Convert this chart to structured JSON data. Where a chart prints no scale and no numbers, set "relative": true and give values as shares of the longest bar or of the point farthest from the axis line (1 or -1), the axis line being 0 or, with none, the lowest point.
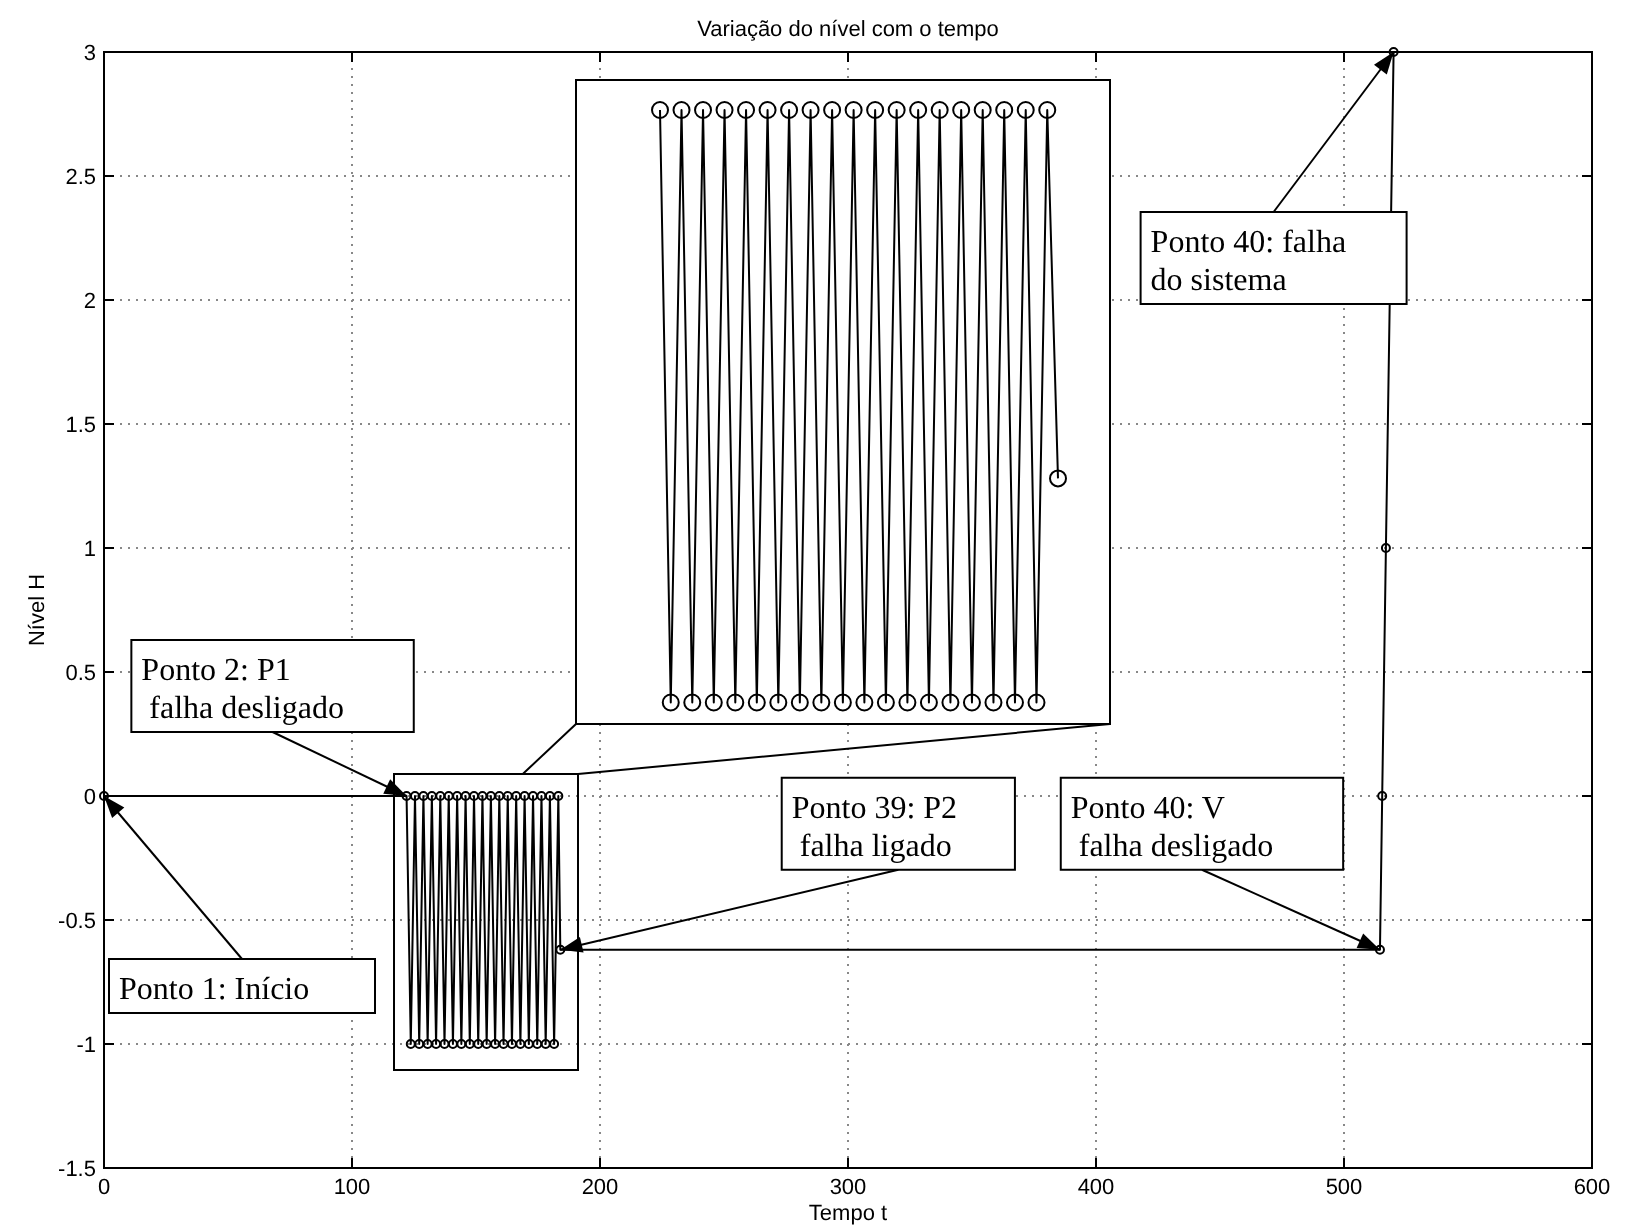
{
  "chart_data": [
    {
      "type": "line",
      "title": "Variação do nível com o tempo",
      "xlabel": "Tempo t",
      "ylabel": "Nível H",
      "xlim": [
        0,
        600
      ],
      "ylim": [
        -1.5,
        3
      ],
      "xticks": [
        0,
        100,
        200,
        300,
        400,
        500,
        600
      ],
      "yticks": [
        -1.5,
        -1,
        -0.5,
        0,
        0.5,
        1,
        1.5,
        2,
        2.5,
        3
      ],
      "grid": true,
      "marker": "circle",
      "series": [
        {
          "color": "#000000",
          "x": [
            0,
            122.0,
            123.7,
            125.4,
            127.1,
            128.8,
            130.5,
            132.2,
            133.9,
            135.6,
            137.3,
            139.0,
            140.7,
            142.4,
            144.1,
            145.8,
            147.5,
            149.2,
            150.9,
            152.6,
            154.3,
            156.0,
            157.7,
            159.4,
            161.1,
            162.8,
            164.5,
            166.2,
            167.9,
            169.6,
            171.3,
            173.0,
            174.7,
            176.4,
            178.1,
            179.8,
            181.5,
            183.2,
            184,
            514.5,
            515.4,
            516.9,
            520
          ],
          "values": [
            0,
            0,
            -1,
            0,
            -1,
            0,
            -1,
            0,
            -1,
            0,
            -1,
            0,
            -1,
            0,
            -1,
            0,
            -1,
            0,
            -1,
            0,
            -1,
            0,
            -1,
            0,
            -1,
            0,
            -1,
            0,
            -1,
            0,
            -1,
            0,
            -1,
            0,
            -1,
            0,
            -1,
            0,
            -0.62,
            -0.62,
            0,
            1,
            3
          ]
        }
      ],
      "annotations": [
        {
          "text": "Ponto 1: Início",
          "x": 0,
          "y": 0
        },
        {
          "text": "Ponto 2: P1\n falha desligado",
          "x": 122,
          "y": 0
        },
        {
          "text": "Ponto 39: P2\n falha ligado",
          "x": 184,
          "y": -0.62
        },
        {
          "text": "Ponto 40: V\n falha desligado",
          "x": 514.5,
          "y": -0.62
        },
        {
          "text": "Ponto 40: falha\ndo sistema",
          "x": 520,
          "y": 3
        }
      ]
    },
    {
      "type": "line",
      "relative": true,
      "marker": "circle",
      "categories": [
        null,
        null,
        null,
        null,
        null,
        null,
        null,
        null,
        null,
        null,
        null,
        null,
        null,
        null,
        null,
        null,
        null,
        null,
        null,
        null,
        null,
        null,
        null,
        null,
        null,
        null,
        null,
        null,
        null,
        null,
        null,
        null,
        null,
        null,
        null,
        null,
        null,
        null
      ],
      "series": [
        {
          "color": "#000000",
          "values": [
            1,
            0.035,
            1,
            0.035,
            1,
            0.035,
            1,
            0.035,
            1,
            0.035,
            1,
            0.035,
            1,
            0.035,
            1,
            0.035,
            1,
            0.035,
            1,
            0.035,
            1,
            0.035,
            1,
            0.035,
            1,
            0.035,
            1,
            0.035,
            1,
            0.035,
            1,
            0.035,
            1,
            0.035,
            1,
            0.035,
            1,
            0.4
          ]
        }
      ]
    }
  ]
}
